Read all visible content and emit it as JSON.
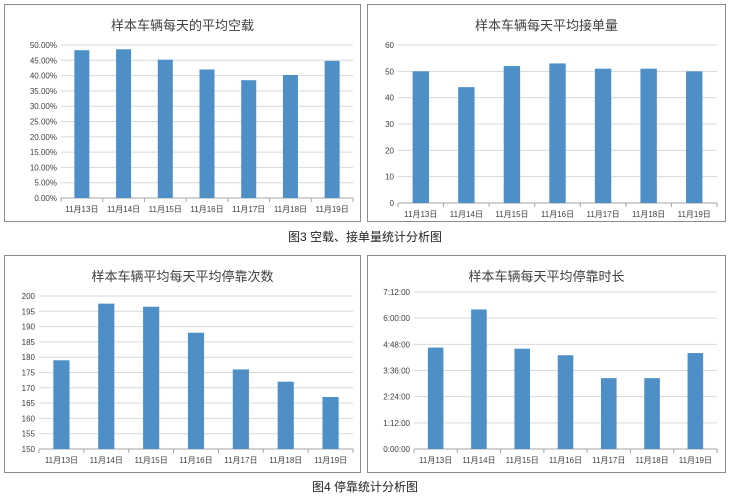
{
  "chart_data": [
    {
      "id": "c1",
      "type": "bar",
      "title": "样本车辆每天的平均空载",
      "categories": [
        "11月13日",
        "11月14日",
        "11月15日",
        "11月16日",
        "11月17日",
        "11月18日",
        "11月19日"
      ],
      "values": [
        48.3,
        48.6,
        45.2,
        42.0,
        38.5,
        40.2,
        44.8
      ],
      "ylim": [
        0,
        50
      ],
      "ticks": [
        0,
        5,
        10,
        15,
        20,
        25,
        30,
        35,
        40,
        45,
        50
      ],
      "tick_labels": [
        "0.00%",
        "5.00%",
        "10.00%",
        "15.00%",
        "20.00%",
        "25.00%",
        "30.00%",
        "35.00%",
        "40.00%",
        "45.00%",
        "50.00%"
      ],
      "grid": true,
      "color": "#4f8fc8"
    },
    {
      "id": "c2",
      "type": "bar",
      "title": "样本车辆每天平均接单量",
      "categories": [
        "11月13日",
        "11月14日",
        "11月15日",
        "11月16日",
        "11月17日",
        "11月18日",
        "11月19日"
      ],
      "values": [
        50,
        44,
        52,
        53,
        51,
        51,
        50
      ],
      "ylim": [
        0,
        60
      ],
      "ticks": [
        0,
        10,
        20,
        30,
        40,
        50,
        60
      ],
      "tick_labels": [
        "0",
        "10",
        "20",
        "30",
        "40",
        "50",
        "60"
      ],
      "grid": true,
      "color": "#4f8fc8"
    },
    {
      "id": "c3",
      "type": "bar",
      "title": "样本车辆平均每天平均停靠次数",
      "categories": [
        "11月13日",
        "11月14日",
        "11月15日",
        "11月16日",
        "11月17日",
        "11月18日",
        "11月19日"
      ],
      "values": [
        179,
        197.5,
        196.5,
        188,
        176,
        172,
        167
      ],
      "ylim": [
        150,
        200
      ],
      "ticks": [
        150,
        155,
        160,
        165,
        170,
        175,
        180,
        185,
        190,
        195,
        200
      ],
      "tick_labels": [
        "150",
        "155",
        "160",
        "165",
        "170",
        "175",
        "180",
        "185",
        "190",
        "195",
        "200"
      ],
      "grid": true,
      "color": "#4f8fc8"
    },
    {
      "id": "c4",
      "type": "bar",
      "title": "样本车辆每天平均停靠时长",
      "categories": [
        "11月13日",
        "11月14日",
        "11月15日",
        "11月16日",
        "11月17日",
        "11月18日",
        "11月19日"
      ],
      "values": [
        4.65,
        6.4,
        4.6,
        4.3,
        3.25,
        3.25,
        4.4
      ],
      "unit": "hours",
      "ylim": [
        0,
        7.2
      ],
      "ticks": [
        0,
        1.2,
        2.4,
        3.6,
        4.8,
        6.0,
        7.2
      ],
      "tick_labels": [
        "0:00:00",
        "1:12:00",
        "2:24:00",
        "3:36:00",
        "4:48:00",
        "6:00:00",
        "7:12:00"
      ],
      "grid": true,
      "color": "#4f8fc8"
    }
  ],
  "captions": {
    "fig3": "图3  空载、接单量统计分析图",
    "fig4": "图4  停靠统计分析图"
  }
}
